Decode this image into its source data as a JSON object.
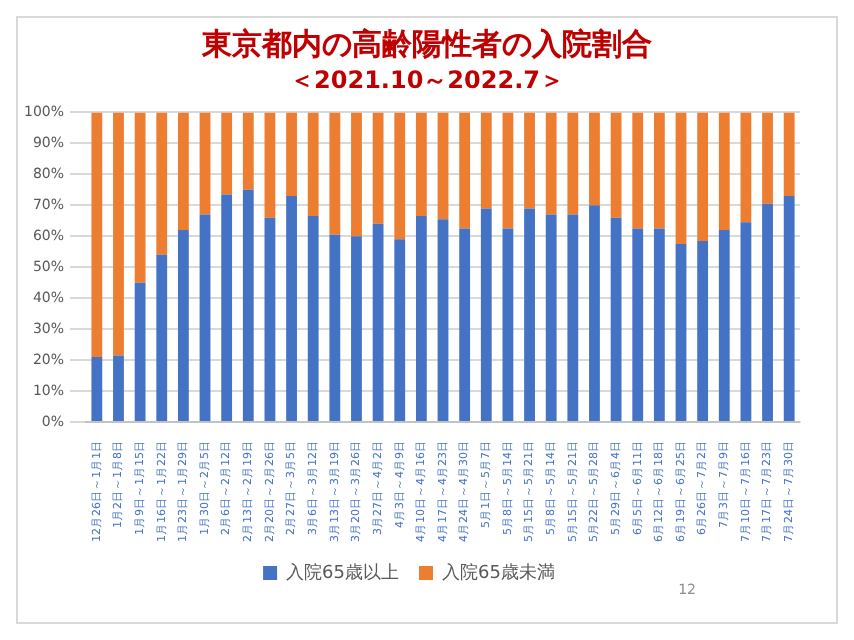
{
  "chart_data": {
    "type": "bar",
    "stacked": true,
    "title": "東京都内の高齢陽性者の入院割合",
    "subtitle": "＜2021.10～2022.7＞",
    "categories": [
      "12月26日～1月1日",
      "1月2日～1月8日",
      "1月9日～1月15日",
      "1月16日～1月22日",
      "1月23日～1月29日",
      "1月30日～2月5日",
      "2月6日～2月12日",
      "2月13日～2月19日",
      "2月20日～2月26日",
      "2月27日～3月5日",
      "3月6日～3月12日",
      "3月13日～3月19日",
      "3月20日～3月26日",
      "3月27日～4月2日",
      "4月3日～4月9日",
      "4月10日～4月16日",
      "4月17日～4月23日",
      "4月24日～4月30日",
      "5月1日～5月7日",
      "5月8日～5月14日",
      "5月15日～5月21日",
      "5月8日～5月14日",
      "5月15日～5月21日",
      "5月22日～5月28日",
      "5月29日～6月4日",
      "6月5日～6月11日",
      "6月12日～6月18日",
      "6月19日～6月25日",
      "6月26日～7月2日",
      "7月3日～7月9日",
      "7月10日～7月16日",
      "7月17日～7月23日",
      "7月24日～7月30日"
    ],
    "series": [
      {
        "name": "入院65歳以上",
        "color": "#4472c4",
        "values": [
          21,
          21.5,
          45,
          54,
          62,
          67,
          73.5,
          75,
          66,
          73,
          66.5,
          60.5,
          60,
          64,
          59,
          66.5,
          65.5,
          62.5,
          69,
          62.5,
          69,
          67,
          67,
          70,
          66,
          62.5,
          62.5,
          57.5,
          58.5,
          62,
          64.5,
          70.5,
          73
        ]
      },
      {
        "name": "入院65歳未満",
        "color": "#ed7d31",
        "values": [
          79,
          78.5,
          55,
          46,
          38,
          33,
          26.5,
          25,
          34,
          27,
          33.5,
          39.5,
          40,
          36,
          41,
          33.5,
          34.5,
          37.5,
          31,
          37.5,
          31,
          33,
          33,
          30,
          34,
          37.5,
          37.5,
          42.5,
          41.5,
          38,
          35.5,
          29.5,
          27
        ]
      }
    ],
    "ylim": [
      0,
      100
    ],
    "yticks": [
      {
        "value": 0,
        "label": "0%"
      },
      {
        "value": 10,
        "label": "10%"
      },
      {
        "value": 20,
        "label": "20%"
      },
      {
        "value": 30,
        "label": "30%"
      },
      {
        "value": 40,
        "label": "40%"
      },
      {
        "value": 50,
        "label": "50%"
      },
      {
        "value": 60,
        "label": "60%"
      },
      {
        "value": 70,
        "label": "70%"
      },
      {
        "value": 80,
        "label": "80%"
      },
      {
        "value": 90,
        "label": "90%"
      },
      {
        "value": 100,
        "label": "100%"
      }
    ],
    "grid": "y",
    "legend": "bottom",
    "annotations": [
      "12"
    ]
  }
}
